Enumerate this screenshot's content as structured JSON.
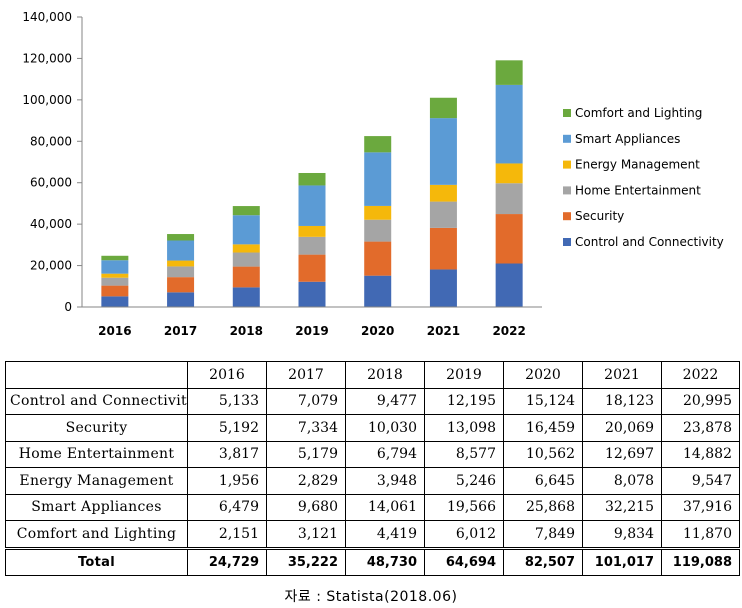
{
  "chart_data": {
    "type": "bar",
    "stacked": true,
    "categories": [
      "2016",
      "2017",
      "2018",
      "2019",
      "2020",
      "2021",
      "2022"
    ],
    "series": [
      {
        "name": "Control and Connectivity",
        "color": "#4169B4",
        "values": [
          5133,
          7079,
          9477,
          12195,
          15124,
          18123,
          20995
        ]
      },
      {
        "name": "Security",
        "color": "#E26B2B",
        "values": [
          5192,
          7334,
          10030,
          13098,
          16459,
          20069,
          23878
        ]
      },
      {
        "name": "Home Entertainment",
        "color": "#A5A5A5",
        "values": [
          3817,
          5179,
          6794,
          8577,
          10562,
          12697,
          14882
        ]
      },
      {
        "name": "Energy Management",
        "color": "#F5B80B",
        "values": [
          1956,
          2829,
          3948,
          5246,
          6645,
          8078,
          9547
        ]
      },
      {
        "name": "Smart Appliances",
        "color": "#5B9BD5",
        "values": [
          6479,
          9680,
          14061,
          19566,
          25868,
          32215,
          37916
        ]
      },
      {
        "name": "Comfort and Lighting",
        "color": "#6BA93E",
        "values": [
          2151,
          3121,
          4419,
          6012,
          7849,
          9834,
          11870
        ]
      }
    ],
    "ylim": [
      0,
      140000
    ],
    "yticks": [
      "0",
      "20,000",
      "40,000",
      "60,000",
      "80,000",
      "100,000",
      "120,000",
      "140,000"
    ],
    "grid": false,
    "legend": "right"
  },
  "table": {
    "header": [
      "",
      "2016",
      "2017",
      "2018",
      "2019",
      "2020",
      "2021",
      "2022"
    ],
    "rows": [
      [
        "Control and Connectivity",
        "5,133",
        "7,079",
        "9,477",
        "12,195",
        "15,124",
        "18,123",
        "20,995"
      ],
      [
        "Security",
        "5,192",
        "7,334",
        "10,030",
        "13,098",
        "16,459",
        "20,069",
        "23,878"
      ],
      [
        "Home Entertainment",
        "3,817",
        "5,179",
        "6,794",
        "8,577",
        "10,562",
        "12,697",
        "14,882"
      ],
      [
        "Energy Management",
        "1,956",
        "2,829",
        "3,948",
        "5,246",
        "6,645",
        "8,078",
        "9,547"
      ],
      [
        "Smart Appliances",
        "6,479",
        "9,680",
        "14,061",
        "19,566",
        "25,868",
        "32,215",
        "37,916"
      ],
      [
        "Comfort and Lighting",
        "2,151",
        "3,121",
        "4,419",
        "6,012",
        "7,849",
        "9,834",
        "11,870"
      ]
    ],
    "total": [
      "Total",
      "24,729",
      "35,222",
      "48,730",
      "64,694",
      "82,507",
      "101,017",
      "119,088"
    ]
  },
  "caption": "자료 : Statista(2018.06)"
}
